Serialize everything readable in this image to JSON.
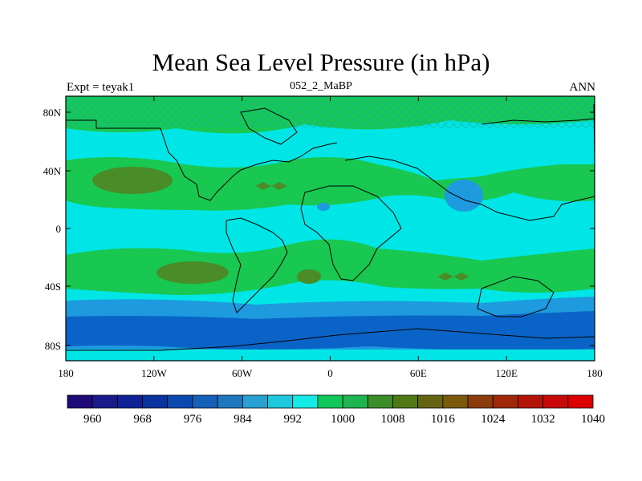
{
  "title": "Mean Sea Level Pressure (in hPa)",
  "left_label": "Expt = teyak1",
  "center_label": "052_2_MaBP",
  "right_label": "ANN",
  "axes": {
    "x_ticks": [
      "180",
      "120W",
      "60W",
      "0",
      "60E",
      "120E",
      "180"
    ],
    "y_ticks": [
      "80N",
      "40N",
      "0",
      "40S",
      "80S"
    ]
  },
  "colorbar": {
    "colors": [
      "#1e0a78",
      "#1a1a8c",
      "#0f2396",
      "#0a32a0",
      "#0a4ab0",
      "#1560b8",
      "#1e78c0",
      "#28a0d2",
      "#1ec8dc",
      "#14ebe6",
      "#10c85a",
      "#1eb450",
      "#3c8c28",
      "#507814",
      "#646414",
      "#7a5a0a",
      "#8c3c0a",
      "#a02808",
      "#b41408",
      "#c80808",
      "#dc0000"
    ],
    "labels": [
      "960",
      "968",
      "976",
      "984",
      "992",
      "1000",
      "1008",
      "1016",
      "1024",
      "1032",
      "1040"
    ]
  },
  "field_colors": {
    "deep": "#0a64c8",
    "low": "#1e9ade",
    "mid": "#00e6e6",
    "high": "#18c850",
    "peak": "#4a8c28"
  }
}
